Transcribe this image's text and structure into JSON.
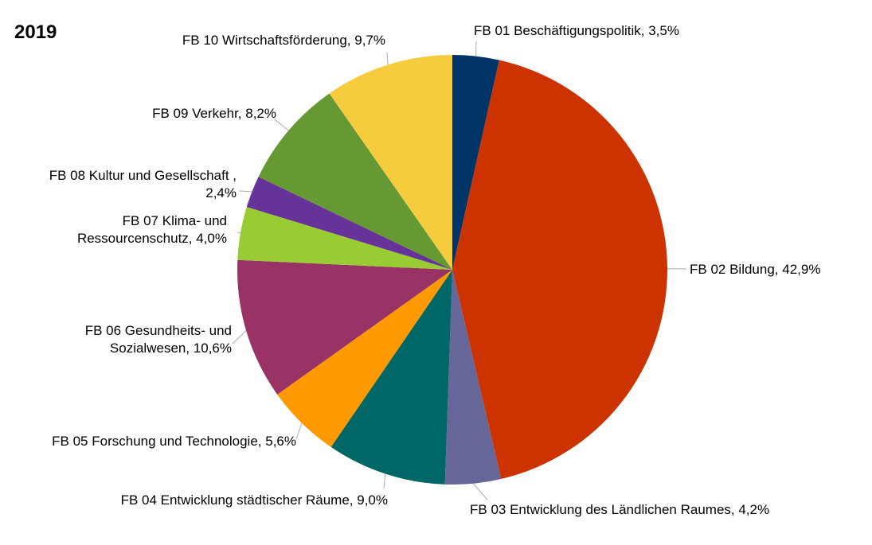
{
  "chart_data": {
    "type": "pie",
    "title": "2019",
    "categories": [
      "FB 01 Beschäftigungspolitik",
      "FB 02 Bildung",
      "FB 03 Entwicklung des Ländlichen Raumes",
      "FB 04 Entwicklung städtischer Räume",
      "FB 05 Forschung und Technologie",
      "FB 06 Gesundheits- und Sozialwesen",
      "FB 07 Klima- und Ressourcenschutz",
      "FB 08 Kultur und Gesellschaft",
      "FB 09 Verkehr",
      "FB 10 Wirtschaftsförderung"
    ],
    "values": [
      3.5,
      42.9,
      4.2,
      9.0,
      5.6,
      10.6,
      4.0,
      2.4,
      8.2,
      9.7
    ],
    "value_labels": [
      [
        "FB 01 Beschäftigungspolitik, 3,5%"
      ],
      [
        "FB 02 Bildung, 42,9%"
      ],
      [
        "FB 03 Entwicklung des Ländlichen Raumes, 4,2%"
      ],
      [
        "FB 04 Entwicklung städtischer Räume, 9,0%"
      ],
      [
        "FB 05 Forschung und Technologie, 5,6%"
      ],
      [
        "FB 06 Gesundheits- und",
        "Sozialwesen, 10,6%"
      ],
      [
        "FB 07 Klima- und",
        "Ressourcenschutz, 4,0%"
      ],
      [
        "FB 08 Kultur und Gesellschaft ,",
        "2,4%"
      ],
      [
        "FB 09 Verkehr, 8,2%"
      ],
      [
        "FB 10 Wirtschaftsförderung, 9,7%"
      ]
    ],
    "colors": [
      "#003366",
      "#cc3300",
      "#666699",
      "#006666",
      "#ff9900",
      "#993366",
      "#99cc33",
      "#663399",
      "#669933",
      "#f5cc3d"
    ]
  }
}
